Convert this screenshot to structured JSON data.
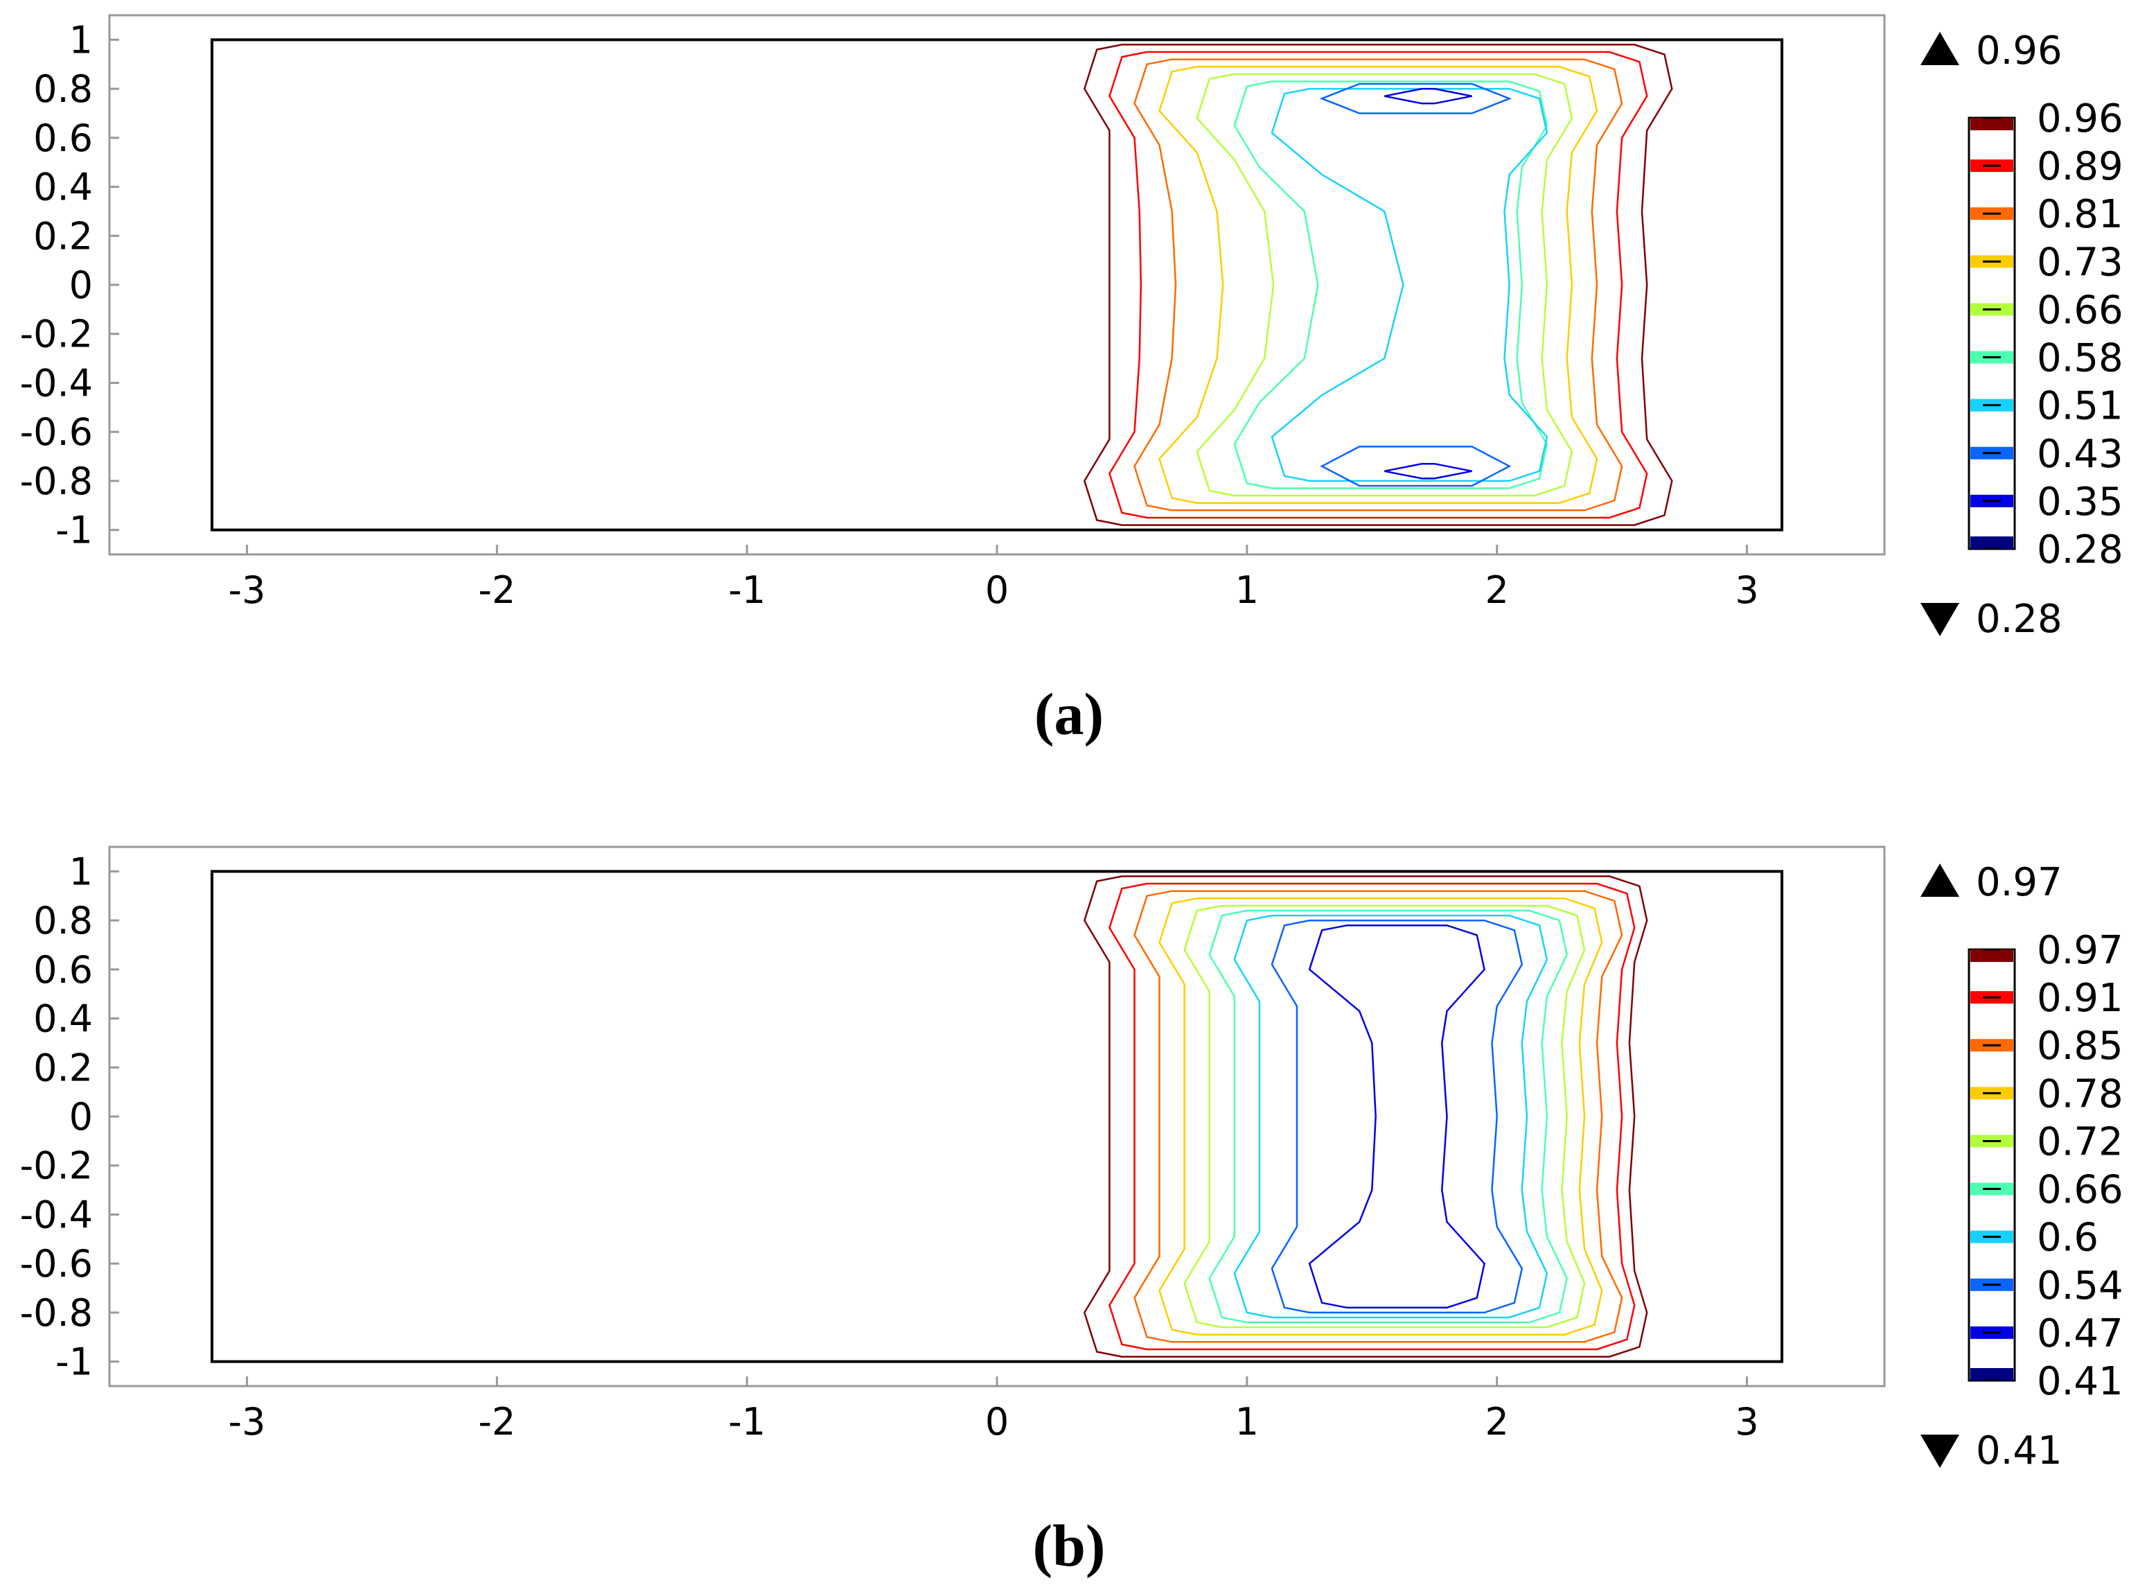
{
  "chart_data": [
    {
      "type": "contour",
      "caption": "(a)",
      "xticks": [
        "-3",
        "-2",
        "-1",
        "0",
        "1",
        "2",
        "3"
      ],
      "yticks": [
        "1",
        "0.8",
        "0.6",
        "0.4",
        "0.2",
        "0",
        "-0.2",
        "-0.4",
        "-0.6",
        "-0.8",
        "-1"
      ],
      "xlim": [
        -3.55,
        3.55
      ],
      "ylim": [
        -1.1,
        1.1
      ],
      "domain": {
        "x": [
          -3.14,
          3.14
        ],
        "y": [
          -1,
          1
        ]
      },
      "colorbar": {
        "max_label": "0.96",
        "min_label": "0.28",
        "levels": [
          "0.96",
          "0.89",
          "0.81",
          "0.73",
          "0.66",
          "0.58",
          "0.51",
          "0.43",
          "0.35",
          "0.28"
        ],
        "colors": [
          "#800000",
          "#ff0000",
          "#ff6a00",
          "#ffcc00",
          "#b4ff3c",
          "#4dffb0",
          "#16d2ff",
          "#0a64ff",
          "#0000e6",
          "#000080"
        ]
      },
      "contours": [
        {
          "level": 0.96,
          "x_outer": [
            0.35,
            2.7
          ],
          "x_mid": [
            0.45,
            2.6
          ],
          "y_top": 0.98,
          "y_bot": -0.98,
          "pinch": 0.0
        },
        {
          "level": 0.89,
          "x_outer": [
            0.45,
            2.6
          ],
          "x_mid": [
            0.55,
            2.5
          ],
          "y_top": 0.95,
          "y_bot": -0.95,
          "pinch": 0.02
        },
        {
          "level": 0.81,
          "x_outer": [
            0.55,
            2.5
          ],
          "x_mid": [
            0.65,
            2.4
          ],
          "y_top": 0.92,
          "y_bot": -0.92,
          "pinch": 0.05
        },
        {
          "level": 0.73,
          "x_outer": [
            0.65,
            2.4
          ],
          "x_mid": [
            0.8,
            2.3
          ],
          "y_top": 0.89,
          "y_bot": -0.89,
          "pinch": 0.08
        },
        {
          "level": 0.66,
          "x_outer": [
            0.8,
            2.3
          ],
          "x_mid": [
            0.95,
            2.2
          ],
          "y_top": 0.86,
          "y_bot": -0.86,
          "pinch": 0.12
        },
        {
          "level": 0.58,
          "x_outer": [
            0.95,
            2.2
          ],
          "x_mid": [
            1.05,
            2.1
          ],
          "y_top": 0.83,
          "y_bot": -0.83,
          "pinch": 0.18
        },
        {
          "level": 0.51,
          "x_outer": [
            1.1,
            2.2
          ],
          "x_mid": [
            1.3,
            2.05
          ],
          "y_top": 0.8,
          "y_bot": -0.8,
          "pinch": 0.25
        }
      ],
      "inner_loops": [
        {
          "level": 0.43,
          "x": [
            1.3,
            2.05
          ],
          "y_center": 0.76,
          "half_h": 0.06
        },
        {
          "level": 0.43,
          "x": [
            1.3,
            2.05
          ],
          "y_center": -0.74,
          "half_h": 0.08
        },
        {
          "level": 0.35,
          "x": [
            1.55,
            1.9
          ],
          "y_center": 0.77,
          "half_h": 0.03
        },
        {
          "level": 0.35,
          "x": [
            1.55,
            1.9
          ],
          "y_center": -0.76,
          "half_h": 0.03
        }
      ]
    },
    {
      "type": "contour",
      "caption": "(b)",
      "xticks": [
        "-3",
        "-2",
        "-1",
        "0",
        "1",
        "2",
        "3"
      ],
      "yticks": [
        "1",
        "0.8",
        "0.6",
        "0.4",
        "0.2",
        "0",
        "-0.2",
        "-0.4",
        "-0.6",
        "-0.8",
        "-1"
      ],
      "xlim": [
        -3.55,
        3.55
      ],
      "ylim": [
        -1.1,
        1.1
      ],
      "domain": {
        "x": [
          -3.14,
          3.14
        ],
        "y": [
          -1,
          1
        ]
      },
      "colorbar": {
        "max_label": "0.97",
        "min_label": "0.41",
        "levels": [
          "0.97",
          "0.91",
          "0.85",
          "0.78",
          "0.72",
          "0.66",
          "0.6",
          "0.54",
          "0.47",
          "0.41"
        ],
        "colors": [
          "#800000",
          "#ff0000",
          "#ff6a00",
          "#ffcc00",
          "#b4ff3c",
          "#4dffb0",
          "#16d2ff",
          "#0a64ff",
          "#0000e6",
          "#000080"
        ]
      },
      "contours": [
        {
          "level": 0.97,
          "x_outer": [
            0.35,
            2.6
          ],
          "x_mid": [
            0.45,
            2.55
          ],
          "y_top": 0.98,
          "y_bot": -0.98,
          "pinch": 0.0
        },
        {
          "level": 0.91,
          "x_outer": [
            0.45,
            2.55
          ],
          "x_mid": [
            0.55,
            2.5
          ],
          "y_top": 0.95,
          "y_bot": -0.95,
          "pinch": 0.0
        },
        {
          "level": 0.85,
          "x_outer": [
            0.55,
            2.5
          ],
          "x_mid": [
            0.65,
            2.42
          ],
          "y_top": 0.92,
          "y_bot": -0.92,
          "pinch": 0.0
        },
        {
          "level": 0.78,
          "x_outer": [
            0.65,
            2.42
          ],
          "x_mid": [
            0.75,
            2.35
          ],
          "y_top": 0.89,
          "y_bot": -0.89,
          "pinch": 0.0
        },
        {
          "level": 0.72,
          "x_outer": [
            0.75,
            2.35
          ],
          "x_mid": [
            0.85,
            2.28
          ],
          "y_top": 0.86,
          "y_bot": -0.86,
          "pinch": 0.0
        },
        {
          "level": 0.66,
          "x_outer": [
            0.85,
            2.28
          ],
          "x_mid": [
            0.95,
            2.2
          ],
          "y_top": 0.84,
          "y_bot": -0.84,
          "pinch": 0.0
        },
        {
          "level": 0.6,
          "x_outer": [
            0.95,
            2.2
          ],
          "x_mid": [
            1.05,
            2.12
          ],
          "y_top": 0.82,
          "y_bot": -0.82,
          "pinch": 0.0
        },
        {
          "level": 0.54,
          "x_outer": [
            1.1,
            2.1
          ],
          "x_mid": [
            1.2,
            2.0
          ],
          "y_top": 0.8,
          "y_bot": -0.8,
          "pinch": 0.0
        },
        {
          "level": 0.47,
          "x_outer": [
            1.25,
            1.95
          ],
          "x_mid": [
            1.45,
            1.8
          ],
          "y_top": 0.78,
          "y_bot": -0.78,
          "pinch": 0.05
        }
      ],
      "inner_loops": []
    }
  ]
}
